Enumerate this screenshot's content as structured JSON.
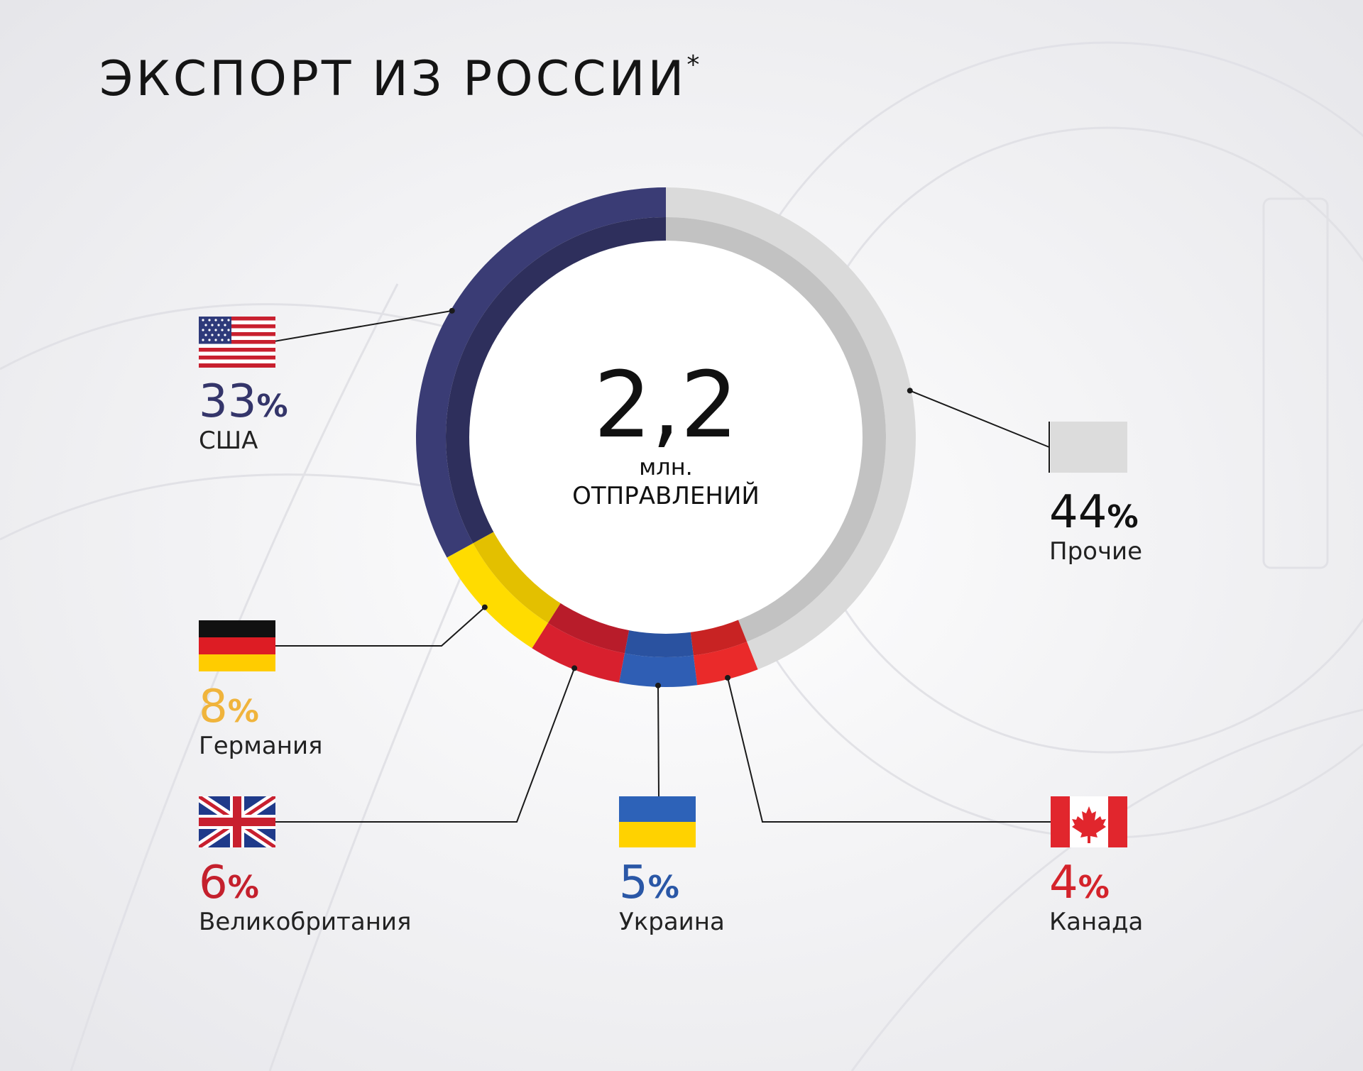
{
  "page": {
    "title": "ЭКСПОРТ ИЗ РОССИИ",
    "title_mark": "*"
  },
  "center": {
    "value": "2,2",
    "unit": "млн.",
    "caption": "ОТПРАВЛЕНИЙ"
  },
  "labels": {
    "usa": {
      "pct": "33",
      "sign": "%",
      "name": "США",
      "color": "#34356a"
    },
    "other": {
      "pct": "44",
      "sign": "%",
      "name": "Прочие",
      "color": "#111111"
    },
    "germany": {
      "pct": "8",
      "sign": "%",
      "name": "Германия",
      "color": "#f0b43c"
    },
    "uk": {
      "pct": "6",
      "sign": "%",
      "name": "Великобритания",
      "color": "#c4202d"
    },
    "ukraine": {
      "pct": "5",
      "sign": "%",
      "name": "Украина",
      "color": "#2a57a6"
    },
    "canada": {
      "pct": "4",
      "sign": "%",
      "name": "Канада",
      "color": "#d4232b"
    }
  },
  "icons": {
    "usa": "usa-flag-icon",
    "germany": "germany-flag-icon",
    "uk": "uk-flag-icon",
    "ukraine": "ukraine-flag-icon",
    "canada": "canada-flag-icon",
    "other": "gray-swatch-icon"
  },
  "chart_data": {
    "type": "pie",
    "donut": true,
    "title": "ЭКСПОРТ ИЗ РОССИИ",
    "total_label": "2,2 млн. ОТПРАВЛЕНИЙ",
    "categories": [
      "США",
      "Германия",
      "Великобритания",
      "Украина",
      "Канада",
      "Прочие"
    ],
    "values": [
      33,
      8,
      6,
      5,
      4,
      44
    ],
    "unit": "%",
    "colors": {
      "США": [
        "#3a3c75",
        "#2e2f5c"
      ],
      "Германия": [
        "#ffdc00",
        "#e3c000"
      ],
      "Великобритания": [
        "#d8202e",
        "#b81c2a"
      ],
      "Украина": [
        "#2f5eb4",
        "#2a52a0"
      ],
      "Канада": [
        "#ea2a2a",
        "#c82323"
      ],
      "Прочие": [
        "#dadada",
        "#c2c2c2"
      ]
    }
  }
}
